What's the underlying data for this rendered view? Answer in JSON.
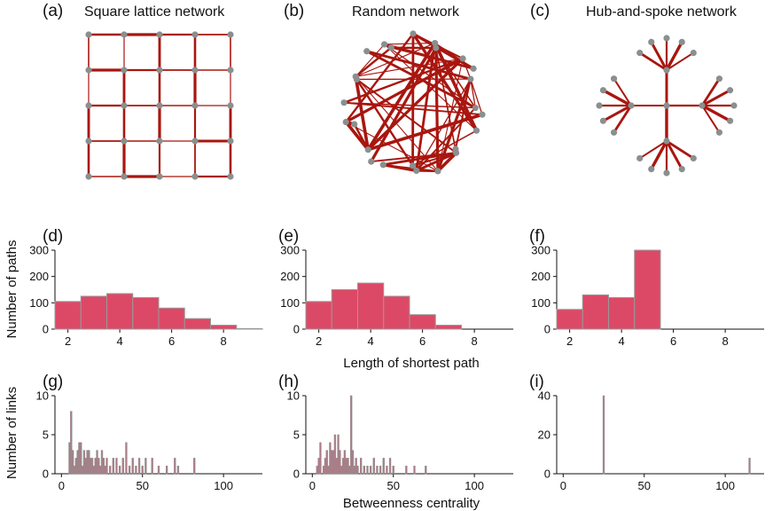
{
  "colors": {
    "edge": "#a8160f",
    "node": "#8a8f8f",
    "hist_fill": "#dc4966",
    "hist_stroke": "#999999",
    "bc_fill": "#b07a86",
    "bc_stroke": "#8e8e8e",
    "axis": "#111111"
  },
  "shared_labels": {
    "path_ylabel": "Number of paths",
    "path_xlabel": "Length of shortest path",
    "bc_ylabel": "Number of links",
    "bc_xlabel": "Betweenness centrality"
  },
  "chart_data": [
    {
      "id": "a",
      "type": "network",
      "label": "(a)",
      "title": "Square lattice network",
      "layout": "lattice",
      "rows": 5,
      "cols": 5
    },
    {
      "id": "b",
      "type": "network",
      "label": "(b)",
      "title": "Random network",
      "layout": "random",
      "nodes": 25
    },
    {
      "id": "c",
      "type": "network",
      "label": "(c)",
      "title": "Hub-and-spoke network",
      "layout": "hub-and-spoke",
      "hubs": 5,
      "leaves_per_outer_hub": 5
    },
    {
      "id": "d",
      "type": "bar",
      "label": "(d)",
      "bins": [
        2,
        3,
        4,
        5,
        6,
        7,
        8,
        9
      ],
      "values": [
        105,
        125,
        135,
        120,
        80,
        40,
        15,
        2
      ],
      "xlim": [
        1.5,
        9.5
      ],
      "xticks": [
        2,
        4,
        6,
        8
      ],
      "ylim": [
        0,
        300
      ],
      "yticks": [
        0,
        100,
        200,
        300
      ]
    },
    {
      "id": "e",
      "type": "bar",
      "label": "(e)",
      "bins": [
        2,
        3,
        4,
        5,
        6,
        7
      ],
      "values": [
        105,
        150,
        175,
        125,
        55,
        15
      ],
      "xlim": [
        1.5,
        9.5
      ],
      "xticks": [
        2,
        4,
        6,
        8
      ],
      "ylim": [
        0,
        300
      ],
      "yticks": [
        0,
        100,
        200,
        300
      ]
    },
    {
      "id": "f",
      "type": "bar",
      "label": "(f)",
      "bins": [
        2,
        3,
        4,
        5
      ],
      "values": [
        75,
        130,
        120,
        300
      ],
      "xlim": [
        1.5,
        9.5
      ],
      "xticks": [
        2,
        4,
        6,
        8
      ],
      "ylim": [
        0,
        300
      ],
      "yticks": [
        0,
        100,
        200,
        300
      ]
    },
    {
      "id": "g",
      "type": "bar",
      "label": "(g)",
      "xlim": [
        -4,
        124
      ],
      "xticks": [
        0,
        50,
        100
      ],
      "ylim": [
        0,
        10
      ],
      "yticks": [
        0,
        5,
        10
      ],
      "x": [
        5,
        6,
        7,
        8,
        9,
        10,
        11,
        12,
        13,
        14,
        15,
        16,
        17,
        18,
        19,
        20,
        21,
        22,
        23,
        24,
        25,
        26,
        27,
        28,
        30,
        32,
        34,
        36,
        38,
        40,
        42,
        44,
        46,
        48,
        50,
        52,
        56,
        60,
        65,
        70,
        72,
        82
      ],
      "values": [
        4,
        8,
        3,
        1,
        2,
        3,
        4,
        4,
        1,
        3,
        2,
        3,
        3,
        2,
        2,
        1,
        2,
        3,
        2,
        1,
        3,
        2,
        1,
        2,
        1,
        2,
        2,
        1,
        2,
        4,
        1,
        2,
        1,
        2,
        1,
        2,
        2,
        1,
        1,
        2,
        1,
        2
      ]
    },
    {
      "id": "h",
      "type": "bar",
      "label": "(h)",
      "xlim": [
        -4,
        124
      ],
      "xticks": [
        0,
        50,
        100
      ],
      "ylim": [
        0,
        10
      ],
      "yticks": [
        0,
        5,
        10
      ],
      "x": [
        3,
        4,
        5,
        7,
        8,
        9,
        10,
        11,
        12,
        13,
        14,
        15,
        16,
        17,
        18,
        19,
        20,
        21,
        22,
        23,
        24,
        25,
        26,
        27,
        28,
        30,
        32,
        34,
        36,
        38,
        40,
        42,
        44,
        46,
        48,
        50,
        58,
        63,
        70
      ],
      "values": [
        1,
        2,
        4,
        1,
        2,
        3,
        1,
        4,
        3,
        3,
        5,
        2,
        5,
        3,
        1,
        2,
        3,
        2,
        2,
        1,
        10,
        3,
        1,
        2,
        1,
        2,
        1,
        1,
        1,
        2,
        1,
        1,
        2,
        1,
        2,
        1,
        1,
        1,
        1
      ]
    },
    {
      "id": "i",
      "type": "bar",
      "label": "(i)",
      "xlim": [
        -4,
        124
      ],
      "xticks": [
        0,
        50,
        100
      ],
      "ylim": [
        0,
        40
      ],
      "yticks": [
        0,
        20,
        40
      ],
      "x": [
        25,
        115
      ],
      "values": [
        40,
        8
      ]
    }
  ]
}
